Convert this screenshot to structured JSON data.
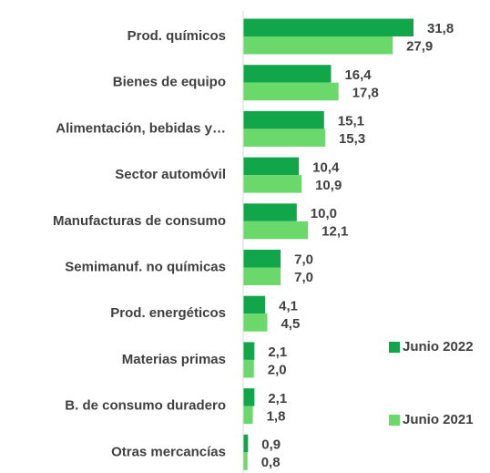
{
  "chart_data": {
    "type": "hbar",
    "categories": [
      "Prod. químicos",
      "Bienes de equipo",
      "Alimentación, bebidas y…",
      "Sector automóvil",
      "Manufacturas de consumo",
      "Semimanuf. no químicas",
      "Prod. energéticos",
      "Materias primas",
      "B. de consumo duradero",
      "Otras mercancías"
    ],
    "series": [
      {
        "name": "Junio 2022",
        "color": "#12a64b",
        "values": [
          31.8,
          16.4,
          15.1,
          10.4,
          10.0,
          7.0,
          4.1,
          2.1,
          2.1,
          0.9
        ],
        "value_labels": [
          "31,8",
          "16,4",
          "15,1",
          "10,4",
          "10,0",
          "7,0",
          "4,1",
          "2,1",
          "2,1",
          "0,9"
        ]
      },
      {
        "name": "Junio 2021",
        "color": "#6bd86b",
        "values": [
          27.9,
          17.8,
          15.3,
          10.9,
          12.1,
          7.0,
          4.5,
          2.0,
          1.8,
          0.8
        ],
        "value_labels": [
          "27,9",
          "17,8",
          "15,3",
          "10,9",
          "12,1",
          "7,0",
          "4,5",
          "2,0",
          "1,8",
          "0,8"
        ]
      }
    ],
    "legend": "right"
  }
}
